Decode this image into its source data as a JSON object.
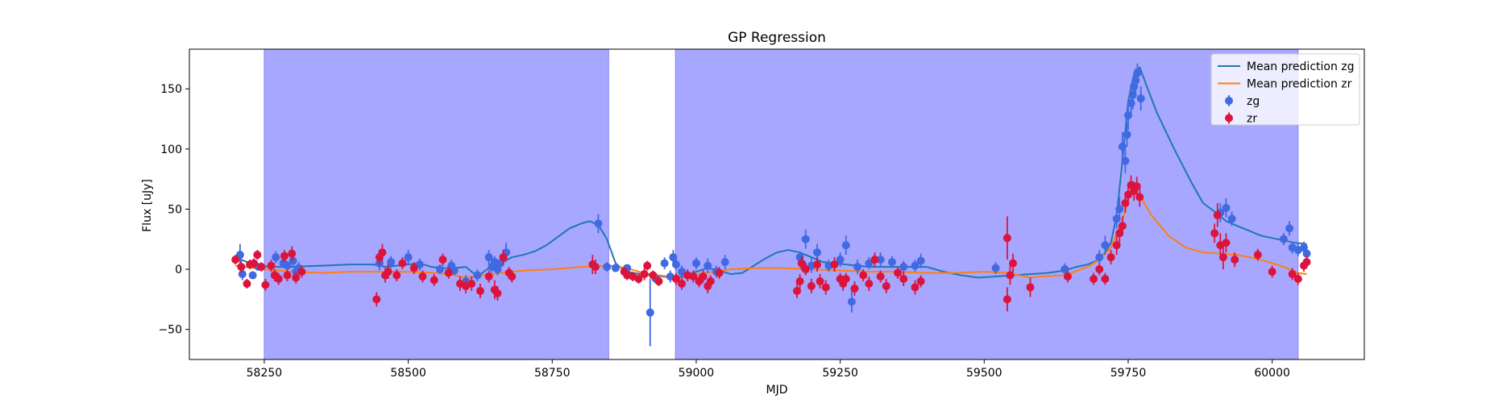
{
  "chart_data": {
    "type": "scatter",
    "title": "GP Regression",
    "xlabel": "MJD",
    "ylabel": "Flux [uJy]",
    "xlim": [
      58120,
      60160
    ],
    "ylim": [
      -75,
      183
    ],
    "x_ticks": [
      58250,
      58500,
      58750,
      59000,
      59250,
      59500,
      59750,
      60000
    ],
    "y_ticks": [
      -50,
      0,
      50,
      100,
      150
    ],
    "grid": false,
    "legend_position": "top-right",
    "shaded_regions": [
      {
        "x0": 58250,
        "x1": 58848,
        "color": "#a7a7ff"
      },
      {
        "x0": 58964,
        "x1": 60045,
        "color": "#a7a7ff"
      }
    ],
    "series": [
      {
        "name": "Mean prediction zg",
        "kind": "line",
        "color": "#1f77b4",
        "x": [
          58200,
          58220,
          58240,
          58260,
          58280,
          58300,
          58320,
          58350,
          58400,
          58440,
          58460,
          58480,
          58500,
          58520,
          58540,
          58560,
          58580,
          58600,
          58620,
          58640,
          58660,
          58680,
          58700,
          58720,
          58740,
          58760,
          58780,
          58800,
          58815,
          58830,
          58845,
          58860,
          58875,
          58890,
          58905,
          58920,
          58940,
          58960,
          58980,
          59000,
          59020,
          59040,
          59060,
          59080,
          59100,
          59120,
          59140,
          59160,
          59180,
          59200,
          59220,
          59240,
          59260,
          59280,
          59300,
          59320,
          59340,
          59360,
          59380,
          59400,
          59430,
          59460,
          59490,
          59520,
          59550,
          59580,
          59610,
          59640,
          59660,
          59680,
          59700,
          59710,
          59720,
          59730,
          59740,
          59750,
          59760,
          59770,
          59780,
          59800,
          59830,
          59860,
          59880,
          59900,
          59920,
          59940,
          59960,
          59980,
          60000,
          60020,
          60040,
          60060
        ],
        "y": [
          10,
          6,
          3,
          2,
          2,
          2,
          2.5,
          3,
          4,
          4,
          2,
          3,
          4,
          5,
          2,
          1,
          1,
          2,
          -6,
          1,
          5,
          10,
          12,
          15,
          20,
          27,
          34,
          38,
          40,
          37,
          25,
          5,
          -1,
          -3,
          -4,
          -5,
          -6,
          -7,
          -6,
          -2,
          1,
          -1,
          -4,
          -3,
          3,
          9,
          14,
          16,
          14,
          10,
          6,
          5,
          4,
          3,
          2,
          2,
          2,
          2,
          2,
          2,
          -2,
          -5,
          -7,
          -6,
          -5,
          -4,
          -3,
          -1,
          2,
          4,
          8,
          14,
          22,
          45,
          90,
          140,
          162,
          168,
          155,
          130,
          100,
          72,
          55,
          48,
          40,
          36,
          32,
          28,
          26,
          24,
          22,
          21
        ],
        "stroke_width": 2
      },
      {
        "name": "Mean prediction zr",
        "kind": "line",
        "color": "#ff7f0e",
        "x": [
          58200,
          58250,
          58300,
          58350,
          58400,
          58450,
          58500,
          58550,
          58580,
          58600,
          58630,
          58660,
          58700,
          58750,
          58800,
          58850,
          58880,
          58900,
          58920,
          58950,
          58980,
          59000,
          59030,
          59060,
          59100,
          59150,
          59200,
          59250,
          59300,
          59350,
          59400,
          59450,
          59500,
          59540,
          59560,
          59580,
          59600,
          59640,
          59680,
          59700,
          59720,
          59740,
          59750,
          59760,
          59770,
          59790,
          59820,
          59850,
          59880,
          59910,
          59940,
          59980,
          60020,
          60045,
          60060
        ],
        "y": [
          3,
          0,
          -2,
          -3,
          -2,
          -2,
          -2,
          -3,
          -5,
          -7,
          -5,
          -3,
          -1,
          0,
          2,
          3,
          1,
          -2,
          -4,
          -6,
          -5,
          -4,
          -2,
          0,
          1,
          1,
          0,
          -1,
          -2,
          -2,
          -3,
          -3,
          -2,
          -3,
          -5,
          -7,
          -6,
          -5,
          2,
          8,
          18,
          40,
          58,
          65,
          62,
          45,
          28,
          18,
          14,
          13,
          12,
          8,
          2,
          -3,
          -4
        ],
        "stroke_width": 2
      },
      {
        "name": "zg",
        "kind": "scatter",
        "color": "#4169e1",
        "points": [
          [
            58208,
            12,
            9
          ],
          [
            58212,
            -4,
            5
          ],
          [
            58230,
            -5,
            3
          ],
          [
            58240,
            2,
            3
          ],
          [
            58270,
            10,
            5
          ],
          [
            58283,
            5,
            4
          ],
          [
            58290,
            3,
            4
          ],
          [
            58300,
            7,
            5
          ],
          [
            58305,
            -2,
            5
          ],
          [
            58310,
            1,
            5
          ],
          [
            58450,
            5,
            6
          ],
          [
            58470,
            6,
            5
          ],
          [
            58500,
            10,
            6
          ],
          [
            58520,
            4,
            5
          ],
          [
            58555,
            0,
            4
          ],
          [
            58575,
            3,
            5
          ],
          [
            58580,
            -1,
            4
          ],
          [
            58600,
            -10,
            5
          ],
          [
            58620,
            -5,
            5
          ],
          [
            58640,
            10,
            6
          ],
          [
            58645,
            2,
            5
          ],
          [
            58650,
            6,
            5
          ],
          [
            58655,
            0,
            5
          ],
          [
            58660,
            5,
            6
          ],
          [
            58670,
            14,
            8
          ],
          [
            58830,
            38,
            8
          ],
          [
            58845,
            2,
            4
          ],
          [
            58860,
            1,
            3
          ],
          [
            58880,
            1,
            3
          ],
          [
            58920,
            -36,
            28
          ],
          [
            58930,
            -8,
            4
          ],
          [
            58945,
            5,
            5
          ],
          [
            58955,
            -6,
            5
          ],
          [
            58960,
            10,
            6
          ],
          [
            58965,
            4,
            5
          ],
          [
            58975,
            -2,
            5
          ],
          [
            59000,
            5,
            5
          ],
          [
            59020,
            3,
            6
          ],
          [
            59035,
            -2,
            5
          ],
          [
            59050,
            6,
            6
          ],
          [
            59180,
            10,
            5
          ],
          [
            59185,
            4,
            5
          ],
          [
            59190,
            25,
            8
          ],
          [
            59200,
            3,
            6
          ],
          [
            59210,
            14,
            7
          ],
          [
            59230,
            3,
            5
          ],
          [
            59250,
            8,
            6
          ],
          [
            59260,
            20,
            8
          ],
          [
            59270,
            -27,
            9
          ],
          [
            59280,
            2,
            6
          ],
          [
            59300,
            5,
            5
          ],
          [
            59320,
            8,
            6
          ],
          [
            59340,
            6,
            5
          ],
          [
            59360,
            2,
            5
          ],
          [
            59380,
            3,
            5
          ],
          [
            59390,
            7,
            6
          ],
          [
            59520,
            1,
            5
          ],
          [
            59640,
            0,
            5
          ],
          [
            59700,
            10,
            6
          ],
          [
            59710,
            20,
            8
          ],
          [
            59730,
            42,
            8
          ],
          [
            59735,
            50,
            10
          ],
          [
            59740,
            102,
            12
          ],
          [
            59745,
            90,
            10
          ],
          [
            59748,
            112,
            10
          ],
          [
            59750,
            128,
            12
          ],
          [
            59755,
            138,
            10
          ],
          [
            59758,
            145,
            12
          ],
          [
            59760,
            152,
            10
          ],
          [
            59763,
            157,
            10
          ],
          [
            59766,
            163,
            8
          ],
          [
            59772,
            142,
            10
          ],
          [
            59910,
            47,
            8
          ],
          [
            59920,
            51,
            8
          ],
          [
            59930,
            42,
            6
          ],
          [
            60020,
            25,
            5
          ],
          [
            60030,
            34,
            6
          ],
          [
            60035,
            18,
            5
          ],
          [
            60045,
            16,
            5
          ],
          [
            60055,
            18,
            5
          ],
          [
            60060,
            13,
            5
          ]
        ]
      },
      {
        "name": "zr",
        "kind": "scatter",
        "color": "#dc143c",
        "points": [
          [
            58200,
            8,
            4
          ],
          [
            58210,
            2,
            5
          ],
          [
            58220,
            -12,
            4
          ],
          [
            58225,
            4,
            4
          ],
          [
            58232,
            5,
            4
          ],
          [
            58238,
            12,
            4
          ],
          [
            58245,
            2,
            4
          ],
          [
            58252,
            -13,
            5
          ],
          [
            58262,
            3,
            5
          ],
          [
            58268,
            -5,
            5
          ],
          [
            58275,
            -8,
            5
          ],
          [
            58285,
            11,
            5
          ],
          [
            58290,
            -5,
            5
          ],
          [
            58298,
            13,
            6
          ],
          [
            58305,
            -7,
            5
          ],
          [
            58315,
            -2,
            5
          ],
          [
            58445,
            -25,
            6
          ],
          [
            58450,
            10,
            6
          ],
          [
            58455,
            14,
            7
          ],
          [
            58460,
            -5,
            6
          ],
          [
            58465,
            -2,
            6
          ],
          [
            58480,
            -5,
            5
          ],
          [
            58490,
            5,
            5
          ],
          [
            58510,
            1,
            5
          ],
          [
            58525,
            -6,
            5
          ],
          [
            58545,
            -9,
            5
          ],
          [
            58560,
            8,
            5
          ],
          [
            58570,
            -3,
            5
          ],
          [
            58590,
            -12,
            6
          ],
          [
            58600,
            -14,
            6
          ],
          [
            58610,
            -12,
            6
          ],
          [
            58625,
            -18,
            6
          ],
          [
            58640,
            -6,
            5
          ],
          [
            58650,
            -17,
            8
          ],
          [
            58655,
            -20,
            6
          ],
          [
            58665,
            10,
            6
          ],
          [
            58675,
            -3,
            5
          ],
          [
            58680,
            -6,
            5
          ],
          [
            58820,
            4,
            8
          ],
          [
            58825,
            2,
            6
          ],
          [
            58875,
            -2,
            4
          ],
          [
            58880,
            -5,
            4
          ],
          [
            58890,
            -6,
            4
          ],
          [
            58900,
            -8,
            4
          ],
          [
            58910,
            -4,
            5
          ],
          [
            58915,
            3,
            4
          ],
          [
            58925,
            -5,
            4
          ],
          [
            58935,
            -10,
            4
          ],
          [
            58965,
            -8,
            5
          ],
          [
            58975,
            -12,
            5
          ],
          [
            58985,
            -5,
            5
          ],
          [
            58995,
            -6,
            5
          ],
          [
            59005,
            -10,
            5
          ],
          [
            59012,
            -6,
            5
          ],
          [
            59020,
            -14,
            6
          ],
          [
            59025,
            -10,
            5
          ],
          [
            59040,
            -3,
            5
          ],
          [
            59175,
            -18,
            6
          ],
          [
            59180,
            -10,
            6
          ],
          [
            59183,
            5,
            6
          ],
          [
            59190,
            0,
            5
          ],
          [
            59200,
            -14,
            6
          ],
          [
            59210,
            4,
            6
          ],
          [
            59215,
            -10,
            6
          ],
          [
            59225,
            -15,
            6
          ],
          [
            59240,
            4,
            6
          ],
          [
            59250,
            -8,
            5
          ],
          [
            59255,
            -12,
            6
          ],
          [
            59260,
            -8,
            5
          ],
          [
            59275,
            -16,
            6
          ],
          [
            59290,
            -5,
            5
          ],
          [
            59300,
            -12,
            6
          ],
          [
            59310,
            8,
            6
          ],
          [
            59320,
            -6,
            5
          ],
          [
            59330,
            -14,
            6
          ],
          [
            59350,
            -3,
            5
          ],
          [
            59360,
            -8,
            6
          ],
          [
            59380,
            -15,
            6
          ],
          [
            59390,
            -10,
            5
          ],
          [
            59540,
            26,
            18
          ],
          [
            59540,
            -25,
            10
          ],
          [
            59545,
            -5,
            8
          ],
          [
            59550,
            5,
            8
          ],
          [
            59580,
            -15,
            8
          ],
          [
            59645,
            -6,
            5
          ],
          [
            59690,
            -8,
            5
          ],
          [
            59700,
            0,
            5
          ],
          [
            59710,
            -8,
            5
          ],
          [
            59720,
            10,
            6
          ],
          [
            59730,
            20,
            8
          ],
          [
            59735,
            30,
            8
          ],
          [
            59740,
            36,
            8
          ],
          [
            59745,
            55,
            8
          ],
          [
            59750,
            62,
            8
          ],
          [
            59755,
            70,
            8
          ],
          [
            59760,
            65,
            8
          ],
          [
            59765,
            69,
            8
          ],
          [
            59770,
            60,
            8
          ],
          [
            59900,
            30,
            8
          ],
          [
            59905,
            45,
            10
          ],
          [
            59910,
            20,
            10
          ],
          [
            59915,
            10,
            10
          ],
          [
            59920,
            22,
            8
          ],
          [
            59935,
            8,
            6
          ],
          [
            59975,
            12,
            5
          ],
          [
            60000,
            -2,
            5
          ],
          [
            60035,
            -4,
            5
          ],
          [
            60045,
            -8,
            5
          ],
          [
            60055,
            3,
            5
          ],
          [
            60060,
            6,
            5
          ]
        ]
      }
    ]
  }
}
